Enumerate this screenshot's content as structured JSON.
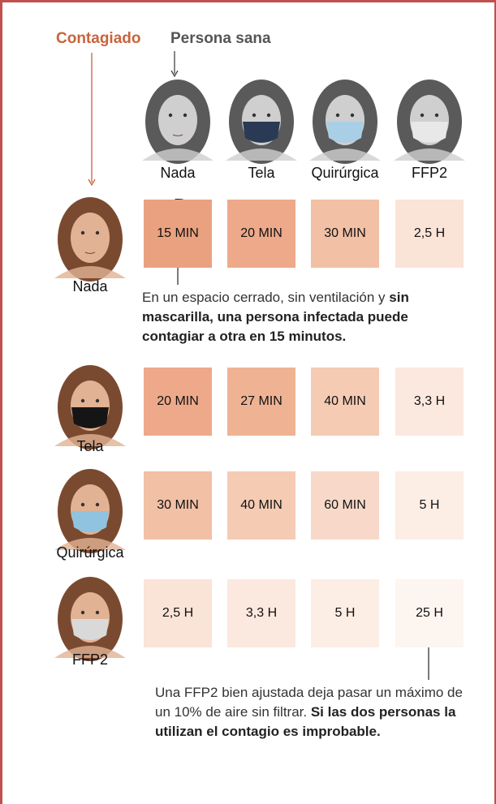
{
  "header": {
    "infected": "Contagiado",
    "healthy": "Persona sana"
  },
  "columns": [
    "Nada",
    "Tela",
    "Quirúrgica",
    "FFP2"
  ],
  "rows": [
    {
      "label": "Nada",
      "cells": [
        "15 MIN",
        "20 MIN",
        "30 MIN",
        "2,5 H"
      ],
      "colors": [
        "#eaa17f",
        "#eda98a",
        "#f2c0a5",
        "#fae3d7"
      ]
    },
    {
      "label": "Tela",
      "cells": [
        "20 MIN",
        "27 MIN",
        "40 MIN",
        "3,3 H"
      ],
      "colors": [
        "#eda98a",
        "#efb394",
        "#f5cbb4",
        "#fbe8de"
      ]
    },
    {
      "label": "Quirúrgica",
      "cells": [
        "30 MIN",
        "40 MIN",
        "60 MIN",
        "5 H"
      ],
      "colors": [
        "#f2c0a5",
        "#f5cbb4",
        "#f8d9c9",
        "#fcede5"
      ]
    },
    {
      "label": "FFP2",
      "cells": [
        "2,5 H",
        "3,3 H",
        "5 H",
        "25 H"
      ],
      "colors": [
        "#fae3d7",
        "#fbe8de",
        "#fcede5",
        "#fdf5f0"
      ]
    }
  ],
  "annotations": [
    {
      "text": "En un espacio cerrado, sin ventilación y ",
      "bold": "sin mascarilla, una persona infectada puede contagiar a otra en 15 minutos."
    },
    {
      "text": "Una FFP2 bien ajustada deja pasar un máximo de un 10% de aire sin filtrar. ",
      "bold": "Si las dos personas la utilizan el contagio es improbable."
    }
  ]
}
